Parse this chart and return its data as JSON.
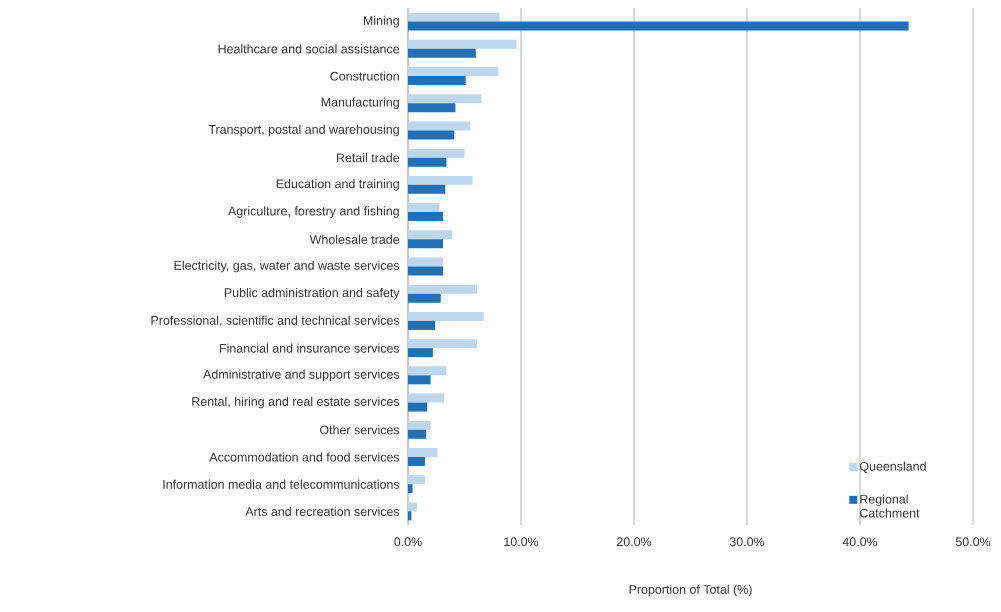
{
  "chart_data": {
    "type": "bar",
    "orientation": "horizontal",
    "xlabel": "Proportion of Total (%)",
    "categories": [
      "Mining",
      "Healthcare and social assistance",
      "Construction",
      "Manufacturing",
      "Transport, postal and warehousing",
      "Retail trade",
      "Education and training",
      "Agriculture, forestry and fishing",
      "Wholesale trade",
      "Electricity, gas, water and waste services",
      "Public administration and safety",
      "Professional, scientific and technical services",
      "Financial and insurance services",
      "Administrative and support services",
      "Rental, hiring and real estate services",
      "Other services",
      "Accommodation and food services",
      "Information media and telecommunications",
      "Arts and recreation services"
    ],
    "series": [
      {
        "name": "Queensland",
        "color": "#bdd7ee",
        "values": [
          8.1,
          9.6,
          8.0,
          6.5,
          5.5,
          5.0,
          5.7,
          2.8,
          3.9,
          3.1,
          6.1,
          6.7,
          6.1,
          3.4,
          3.2,
          2.0,
          2.6,
          1.5,
          0.8
        ]
      },
      {
        "name": "Regional Catchment",
        "color": "#1f70b9",
        "values": [
          44.3,
          6.0,
          5.1,
          4.2,
          4.1,
          3.4,
          3.3,
          3.1,
          3.1,
          3.1,
          2.9,
          2.4,
          2.2,
          2.0,
          1.7,
          1.6,
          1.5,
          0.4,
          0.3
        ]
      }
    ],
    "xlim": [
      0,
      50
    ],
    "xticks": [
      {
        "value": 0,
        "label": "0.0%"
      },
      {
        "value": 10,
        "label": "10.0%"
      },
      {
        "value": 20,
        "label": "20.0%"
      },
      {
        "value": 30,
        "label": "30.0%"
      },
      {
        "value": 40,
        "label": "40.0%"
      },
      {
        "value": 50,
        "label": "50.0%"
      }
    ],
    "grid": "x",
    "legend": "bottom right"
  }
}
